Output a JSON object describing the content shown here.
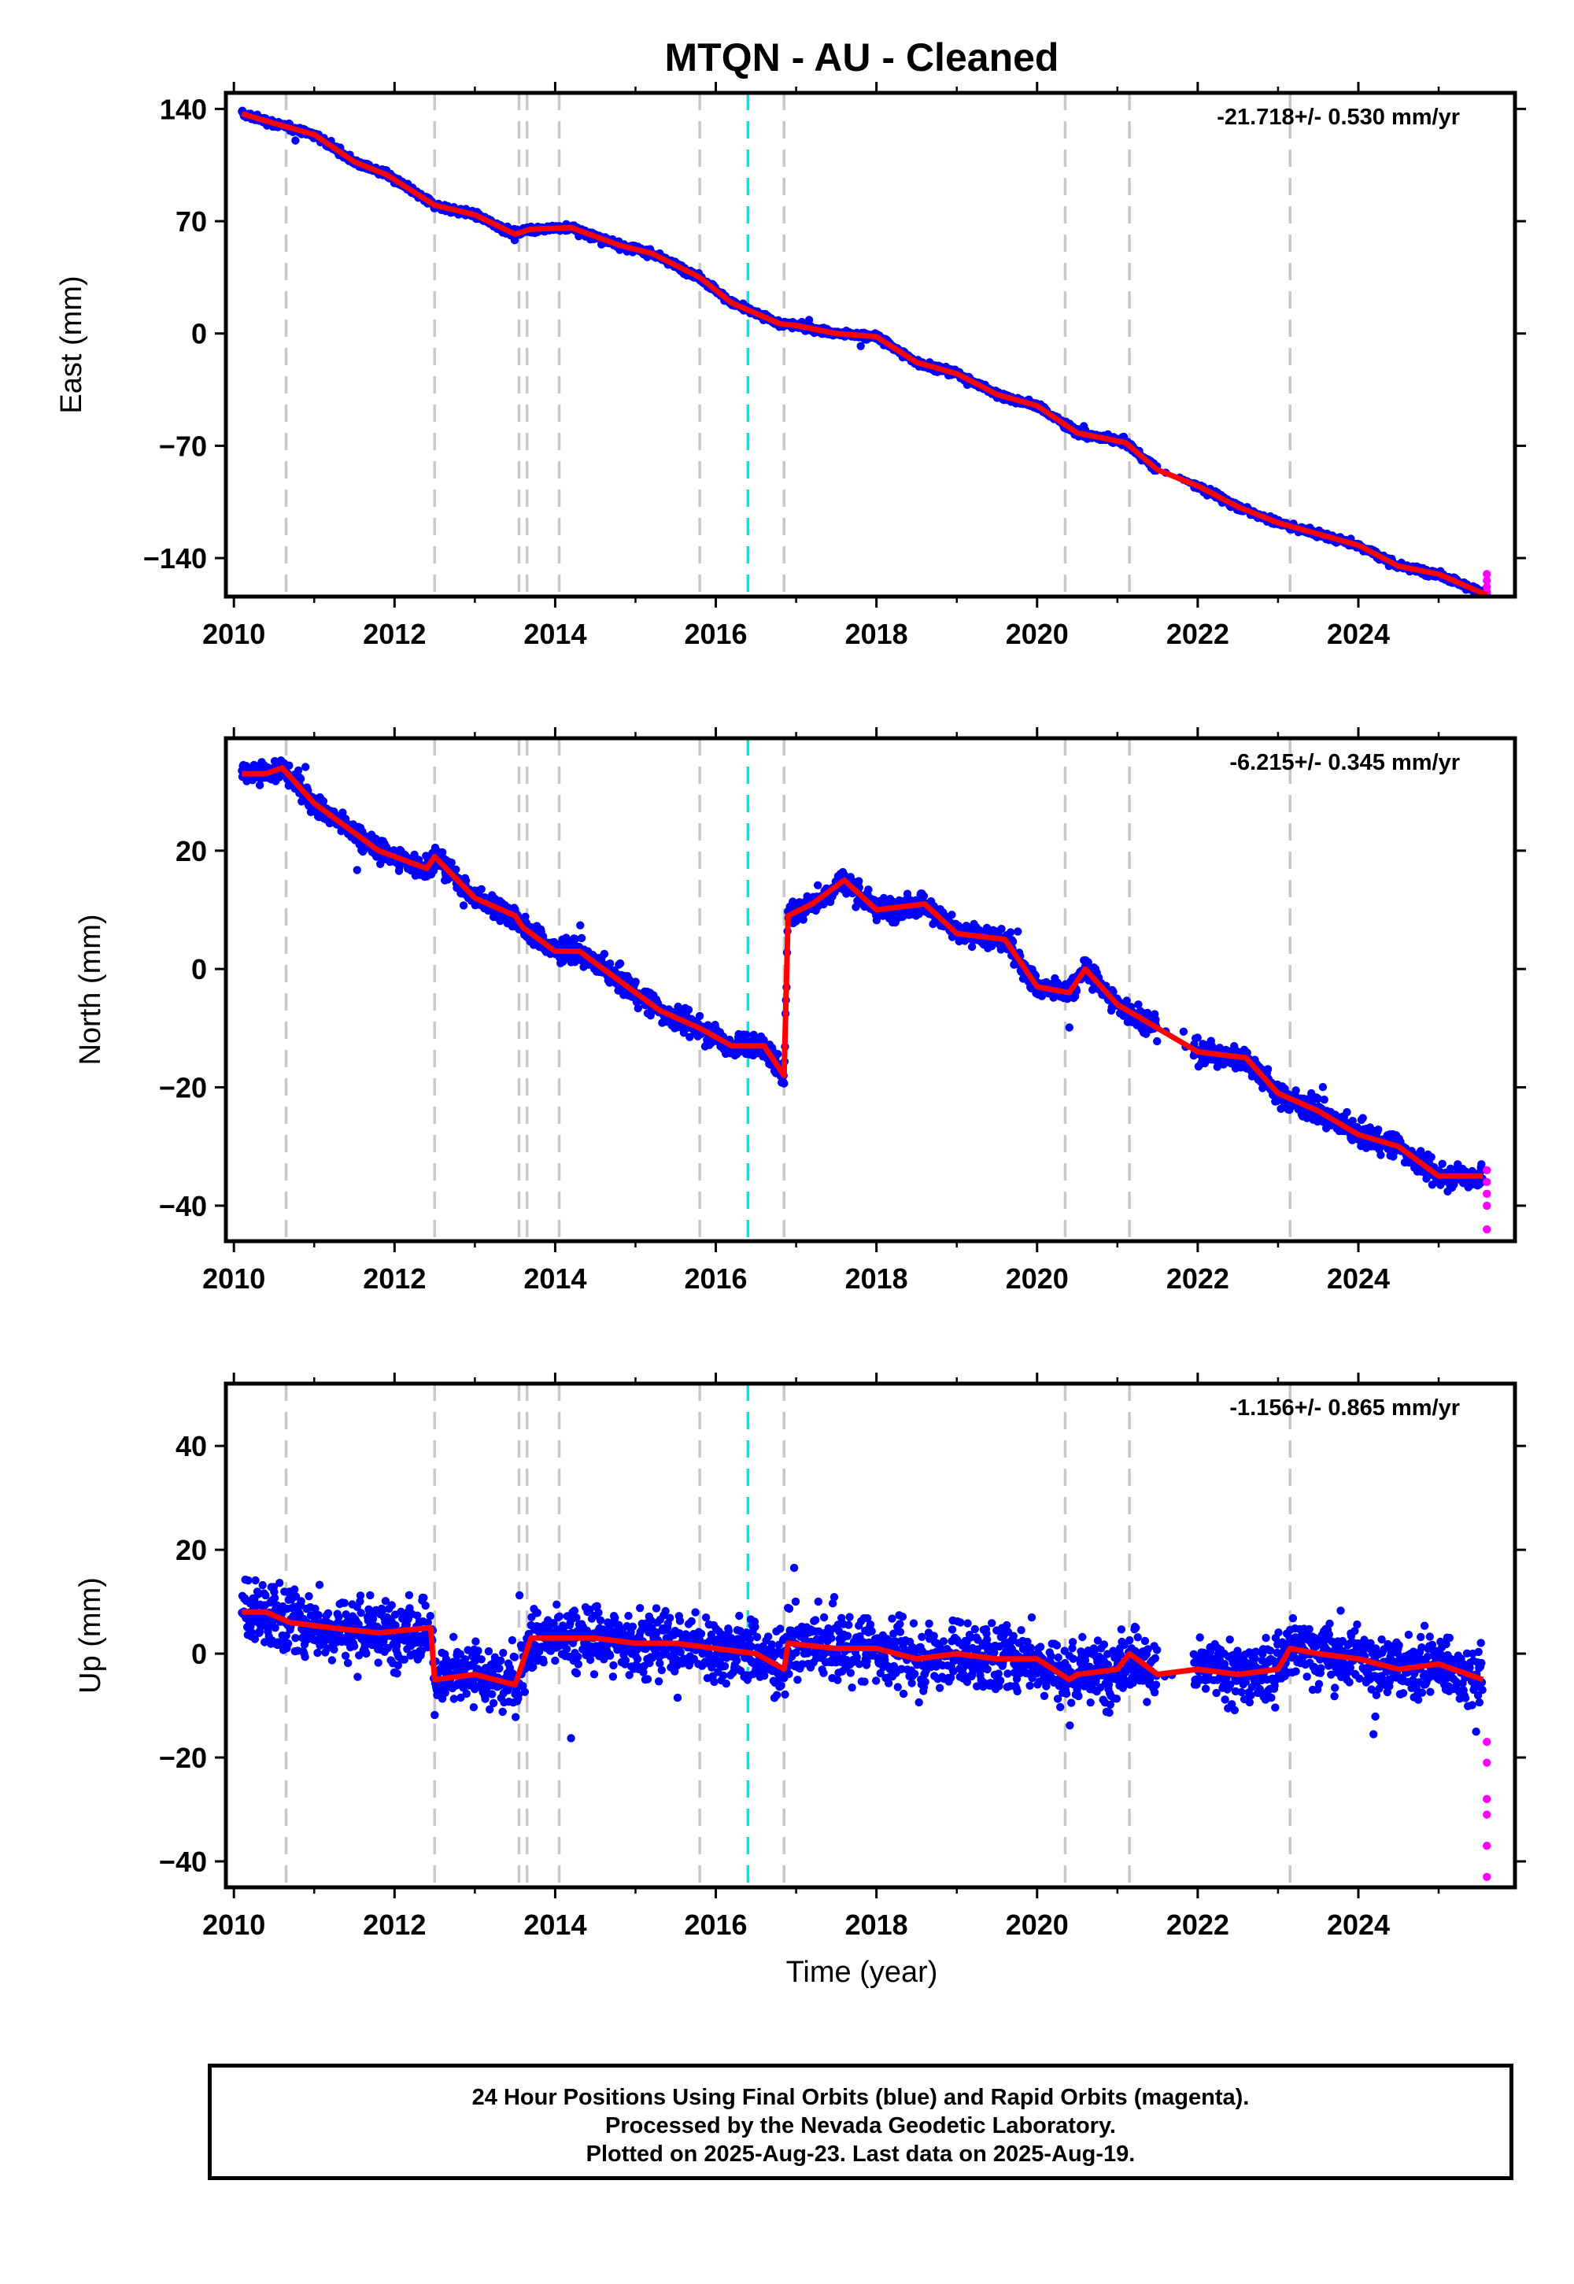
{
  "title": "MTQN  - AU - Cleaned",
  "xlabel": "Time (year)",
  "footer": {
    "line1": "24 Hour Positions Using Final Orbits (blue) and Rapid Orbits (magenta).",
    "line2": "Processed by the Nevada Geodetic Laboratory.",
    "line3": "Plotted on 2025-Aug-23. Last data on 2025-Aug-19."
  },
  "colors": {
    "final_points": "#0000ff",
    "rapid_points": "#ff00ff",
    "model": "#ff0000",
    "equipment_change": "#c8c8c8",
    "earthquake": "#00e5ee"
  },
  "chart_data": [
    {
      "type": "scatter",
      "ylabel": "East (mm)",
      "rate_label": "-21.718+/- 0.530 mm/yr",
      "xlim": [
        2009.9,
        2025.95
      ],
      "ylim": [
        -164,
        150
      ],
      "xticks": [
        2010,
        2012,
        2014,
        2016,
        2018,
        2020,
        2022,
        2024
      ],
      "yticks": [
        140,
        70,
        0,
        -70,
        -140
      ],
      "ytick_labels": [
        "140",
        "70",
        "0",
        "−70",
        "−140"
      ],
      "series": [
        {
          "role": "final",
          "x": [
            2010.1,
            2010.5,
            2011.0,
            2011.5,
            2011.9,
            2012.5,
            2013.0,
            2013.5,
            2013.7,
            2014.2,
            2014.8,
            2015.2,
            2015.8,
            2016.2,
            2016.8,
            2017.0,
            2017.5,
            2018.0,
            2018.5,
            2019.0,
            2019.5,
            2020.0,
            2020.5,
            2021.1,
            2021.5,
            2022.0,
            2022.5,
            2023.0,
            2023.5,
            2024.0,
            2024.5,
            2025.0,
            2025.6
          ],
          "y": [
            137,
            131,
            124,
            107,
            99,
            80,
            74,
            62,
            65,
            66,
            55,
            50,
            35,
            19,
            6,
            5,
            0,
            -2,
            -18,
            -25,
            -38,
            -45,
            -62,
            -68,
            -85,
            -95,
            -108,
            -118,
            -125,
            -132,
            -145,
            -150,
            -163
          ]
        },
        {
          "role": "model",
          "x": [
            2010.1,
            2010.5,
            2011.0,
            2011.5,
            2011.9,
            2012.5,
            2013.0,
            2013.5,
            2013.7,
            2014.2,
            2014.8,
            2015.2,
            2015.8,
            2016.2,
            2016.8,
            2017.0,
            2017.5,
            2018.0,
            2018.5,
            2019.0,
            2019.5,
            2020.0,
            2020.5,
            2021.1,
            2021.5,
            2022.0,
            2022.5,
            2023.0,
            2023.5,
            2024.0,
            2024.5,
            2025.0,
            2025.6
          ],
          "y": [
            137,
            131,
            124,
            107,
            99,
            80,
            74,
            62,
            65,
            66,
            55,
            50,
            35,
            19,
            6,
            5,
            0,
            -2,
            -18,
            -25,
            -38,
            -45,
            -62,
            -68,
            -85,
            -95,
            -108,
            -118,
            -125,
            -132,
            -145,
            -150,
            -163
          ]
        },
        {
          "role": "rapid",
          "x": [
            2025.6,
            2025.6,
            2025.6,
            2025.6,
            2025.6
          ],
          "y": [
            -150,
            -154,
            -158,
            -161,
            -165
          ]
        }
      ]
    },
    {
      "type": "scatter",
      "ylabel": "North (mm)",
      "rate_label": "-6.215+/- 0.345 mm/yr",
      "xlim": [
        2009.9,
        2025.95
      ],
      "ylim": [
        -46,
        39
      ],
      "xticks": [
        2010,
        2012,
        2014,
        2016,
        2018,
        2020,
        2022,
        2024
      ],
      "yticks": [
        20,
        0,
        -20,
        -40
      ],
      "ytick_labels": [
        "20",
        "0",
        "−20",
        "−40"
      ],
      "series": [
        {
          "role": "final",
          "x": [
            2010.1,
            2010.4,
            2010.6,
            2011.0,
            2011.4,
            2011.8,
            2012.4,
            2012.5,
            2013.0,
            2013.5,
            2013.6,
            2014.0,
            2014.3,
            2014.8,
            2015.3,
            2015.8,
            2016.2,
            2016.6,
            2016.85,
            2016.9,
            2017.2,
            2017.6,
            2018.0,
            2018.6,
            2019.0,
            2019.6,
            2020.0,
            2020.4,
            2020.6,
            2021.0,
            2021.5,
            2022.0,
            2022.6,
            2023.0,
            2023.5,
            2024.0,
            2024.5,
            2025.0,
            2025.55
          ],
          "y": [
            33,
            33,
            34,
            28,
            24,
            20,
            17,
            19,
            12,
            9,
            7,
            3,
            3,
            -2,
            -7,
            -10,
            -13,
            -13,
            -18,
            9,
            11,
            15,
            10,
            11,
            6,
            5,
            -3,
            -4,
            0,
            -6,
            -10,
            -14,
            -15,
            -21,
            -24,
            -28,
            -30,
            -35,
            -35
          ]
        },
        {
          "role": "model",
          "x": [
            2010.1,
            2010.4,
            2010.6,
            2011.0,
            2011.4,
            2011.8,
            2012.4,
            2012.5,
            2013.0,
            2013.5,
            2013.6,
            2014.0,
            2014.3,
            2014.8,
            2015.3,
            2015.8,
            2016.2,
            2016.6,
            2016.85,
            2016.9,
            2017.2,
            2017.6,
            2018.0,
            2018.6,
            2019.0,
            2019.6,
            2020.0,
            2020.4,
            2020.6,
            2021.0,
            2021.5,
            2022.0,
            2022.6,
            2023.0,
            2023.5,
            2024.0,
            2024.5,
            2025.0,
            2025.55
          ],
          "y": [
            33,
            33,
            34,
            28,
            24,
            20,
            17,
            19,
            12,
            9,
            7,
            3,
            3,
            -2,
            -7,
            -10,
            -13,
            -13,
            -18,
            9,
            11,
            15,
            10,
            11,
            6,
            5,
            -3,
            -4,
            0,
            -6,
            -10,
            -14,
            -15,
            -21,
            -24,
            -28,
            -30,
            -35,
            -35
          ]
        },
        {
          "role": "rapid",
          "x": [
            2025.6,
            2025.6,
            2025.6,
            2025.6,
            2025.6
          ],
          "y": [
            -34,
            -36,
            -38,
            -40,
            -44
          ]
        }
      ]
    },
    {
      "type": "scatter",
      "ylabel": "Up (mm)",
      "rate_label": "-1.156+/- 0.865 mm/yr",
      "xlim": [
        2009.9,
        2025.95
      ],
      "ylim": [
        -45,
        52
      ],
      "xticks": [
        2010,
        2012,
        2014,
        2016,
        2018,
        2020,
        2022,
        2024
      ],
      "yticks": [
        40,
        20,
        0,
        -20,
        -40
      ],
      "ytick_labels": [
        "40",
        "20",
        "0",
        "−20",
        "−40"
      ],
      "series": [
        {
          "role": "final",
          "x": [
            2010.1,
            2010.4,
            2010.7,
            2011.2,
            2011.8,
            2012.45,
            2012.5,
            2013.0,
            2013.5,
            2013.7,
            2014.0,
            2014.5,
            2015.0,
            2015.5,
            2016.0,
            2016.5,
            2016.85,
            2016.9,
            2017.5,
            2018.0,
            2018.5,
            2019.0,
            2019.5,
            2020.0,
            2020.4,
            2020.5,
            2021.0,
            2021.15,
            2021.5,
            2022.0,
            2022.5,
            2023.0,
            2023.15,
            2023.5,
            2024.0,
            2024.5,
            2025.0,
            2025.55
          ],
          "y": [
            8,
            8,
            6,
            5,
            4,
            5,
            -5,
            -4,
            -6,
            3,
            3,
            3,
            2,
            2,
            1,
            0,
            -3,
            2,
            1,
            1,
            -1,
            0,
            -1,
            -1,
            -5,
            -4,
            -3,
            0,
            -4,
            -3,
            -4,
            -3,
            1,
            0,
            -1,
            -3,
            -2,
            -5
          ]
        },
        {
          "role": "model",
          "x": [
            2010.1,
            2010.4,
            2010.7,
            2011.2,
            2011.8,
            2012.45,
            2012.5,
            2013.0,
            2013.5,
            2013.7,
            2014.0,
            2014.5,
            2015.0,
            2015.5,
            2016.0,
            2016.5,
            2016.85,
            2016.9,
            2017.5,
            2018.0,
            2018.5,
            2019.0,
            2019.5,
            2020.0,
            2020.4,
            2020.5,
            2021.0,
            2021.15,
            2021.5,
            2022.0,
            2022.5,
            2023.0,
            2023.15,
            2023.5,
            2024.0,
            2024.5,
            2025.0,
            2025.55
          ],
          "y": [
            8,
            8,
            6,
            5,
            4,
            5,
            -5,
            -4,
            -6,
            3,
            3,
            3,
            2,
            2,
            1,
            0,
            -3,
            2,
            1,
            1,
            -1,
            0,
            -1,
            -1,
            -5,
            -4,
            -3,
            0,
            -4,
            -3,
            -4,
            -3,
            1,
            0,
            -1,
            -3,
            -2,
            -5
          ]
        },
        {
          "role": "rapid",
          "x": [
            2025.6,
            2025.6,
            2025.6,
            2025.6,
            2025.6,
            2025.6
          ],
          "y": [
            -17,
            -21,
            -28,
            -31,
            -37,
            -43
          ]
        }
      ]
    }
  ],
  "equipment_changes": [
    2010.65,
    2012.5,
    2013.55,
    2013.65,
    2014.05,
    2015.8,
    2016.85,
    2020.35,
    2021.15,
    2023.15
  ],
  "earthquakes": [
    2016.4
  ]
}
